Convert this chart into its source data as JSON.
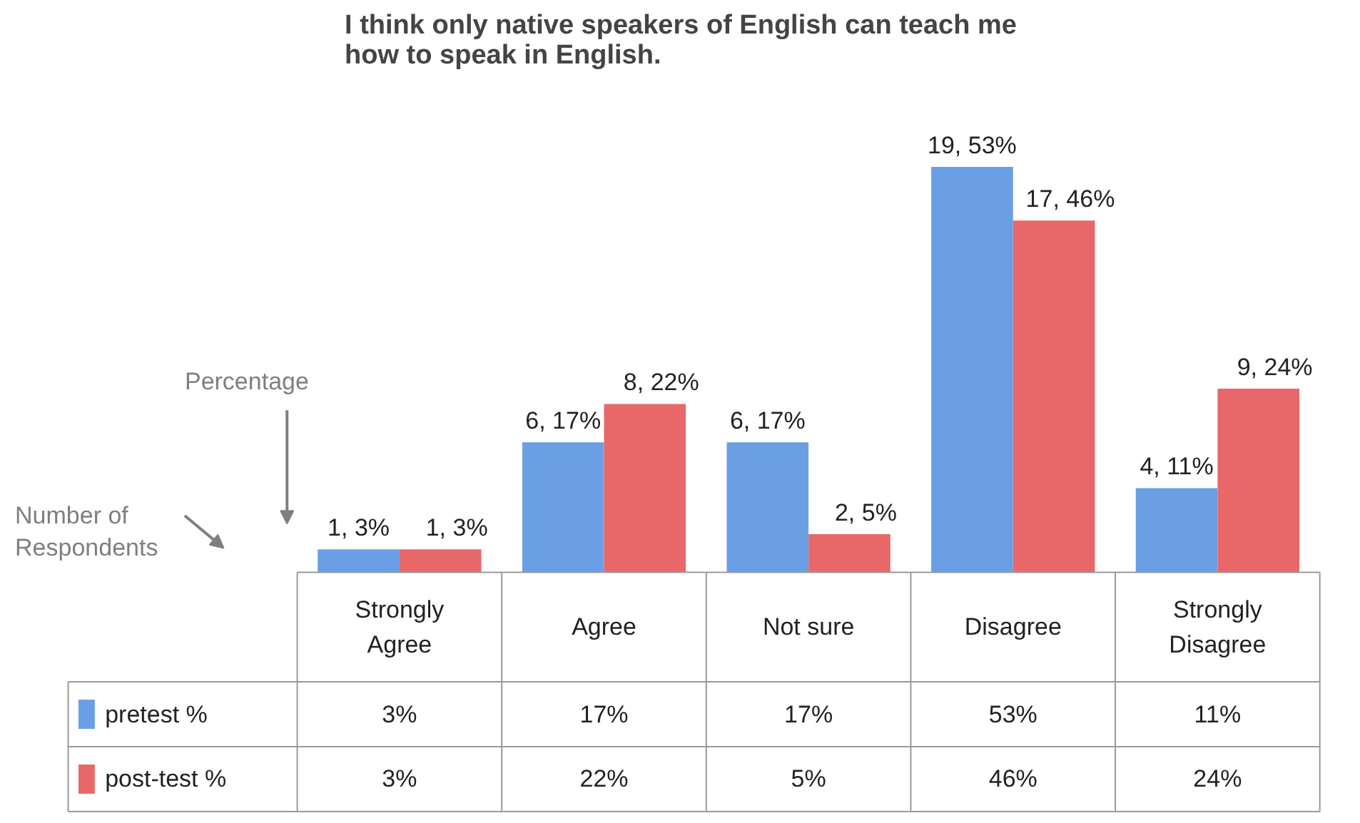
{
  "chart_data": {
    "type": "bar",
    "title": "I think only native speakers of English can teach me how to speak in English.",
    "categories": [
      "Strongly Agree",
      "Agree",
      "Not sure",
      "Disagree",
      "Strongly Disagree"
    ],
    "series": [
      {
        "name": "pretest %",
        "color": "#6a9fe6",
        "values": [
          3,
          17,
          17,
          53,
          11
        ],
        "value_labels": [
          "3%",
          "17%",
          "17%",
          "53%",
          "11%"
        ]
      },
      {
        "name": "post-test %",
        "color": "#e8686a",
        "values": [
          3,
          22,
          5,
          46,
          24
        ],
        "value_labels": [
          "3%",
          "22%",
          "5%",
          "46%",
          "24%"
        ]
      }
    ],
    "annotations": [
      {
        "text": "1, 3%",
        "x": "Strongly Agree",
        "y": 3
      },
      {
        "text": "1, 3%",
        "x": "Strongly Agree",
        "y": 3
      },
      {
        "text": "6, 17%",
        "x": "Agree",
        "y": 17
      },
      {
        "text": "8, 22%",
        "x": "Agree",
        "y": 22
      },
      {
        "text": "6, 17%",
        "x": "Not sure",
        "y": 17
      },
      {
        "text": "2, 5%",
        "x": "Not sure",
        "y": 5
      },
      {
        "text": "19, 53%",
        "x": "Disagree",
        "y": 53
      },
      {
        "text": "17, 46%",
        "x": "Disagree",
        "y": 46
      },
      {
        "text": "4, 11%",
        "x": "Strongly Disagree",
        "y": 11
      },
      {
        "text": "9, 24%",
        "x": "Strongly Disagree",
        "y": 24
      },
      "Percentage",
      "Number of Respondents"
    ],
    "legend": "left",
    "grid": false
  }
}
